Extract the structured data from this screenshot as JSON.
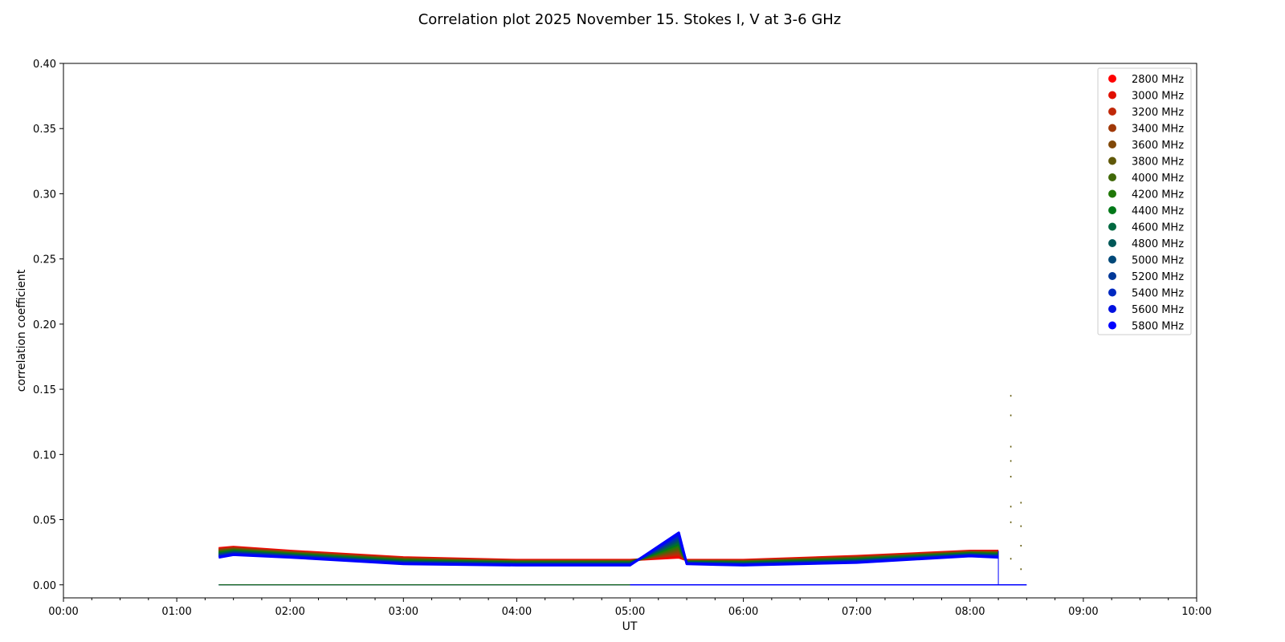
{
  "chart_data": {
    "type": "scatter",
    "title": "Correlation plot 2025 November 15. Stokes I, V at 3-6 GHz",
    "xlabel": "UT",
    "ylabel": "correlation coefficient",
    "xlim_hours": [
      0,
      10
    ],
    "ylim": [
      -0.01,
      0.4
    ],
    "xticks": [
      "00:00",
      "01:00",
      "02:00",
      "03:00",
      "04:00",
      "05:00",
      "06:00",
      "07:00",
      "08:00",
      "09:00",
      "10:00"
    ],
    "yticks": [
      "0.00",
      "0.05",
      "0.10",
      "0.15",
      "0.20",
      "0.25",
      "0.30",
      "0.35",
      "0.40"
    ],
    "legend_position": "top-right",
    "x_hours": [
      1.37,
      1.5,
      2,
      3,
      4,
      5,
      5.43,
      5.5,
      6,
      7,
      8,
      8.25
    ],
    "series": [
      {
        "name": "2800 MHz",
        "color": "#ff0000",
        "values": [
          0.028,
          0.029,
          0.026,
          0.021,
          0.019,
          0.019,
          0.021,
          0.019,
          0.019,
          0.022,
          0.026,
          0.026
        ]
      },
      {
        "name": "3000 MHz",
        "color": "#e01000",
        "values": [
          0.0275,
          0.0286,
          0.0257,
          0.0207,
          0.0187,
          0.0187,
          0.0223,
          0.0188,
          0.0187,
          0.0217,
          0.0257,
          0.0257
        ]
      },
      {
        "name": "3200 MHz",
        "color": "#c02808",
        "values": [
          0.0271,
          0.0282,
          0.0253,
          0.0203,
          0.0185,
          0.0185,
          0.0235,
          0.0186,
          0.0185,
          0.0213,
          0.0255,
          0.0253
        ]
      },
      {
        "name": "3400 MHz",
        "color": "#a03808",
        "values": [
          0.0266,
          0.0278,
          0.025,
          0.02,
          0.0182,
          0.0182,
          0.0248,
          0.0184,
          0.0182,
          0.021,
          0.0252,
          0.025
        ]
      },
      {
        "name": "3600 MHz",
        "color": "#804808",
        "values": [
          0.0261,
          0.0274,
          0.0247,
          0.0197,
          0.0179,
          0.0179,
          0.0261,
          0.0182,
          0.0179,
          0.0207,
          0.0249,
          0.0247
        ]
      },
      {
        "name": "3800 MHz",
        "color": "#605808",
        "values": [
          0.0257,
          0.027,
          0.0243,
          0.0193,
          0.0177,
          0.0177,
          0.0273,
          0.018,
          0.0177,
          0.0203,
          0.0247,
          0.0243
        ]
      },
      {
        "name": "4000 MHz",
        "color": "#406808",
        "values": [
          0.0252,
          0.0266,
          0.024,
          0.019,
          0.0174,
          0.0174,
          0.0286,
          0.0178,
          0.0174,
          0.02,
          0.0244,
          0.024
        ]
      },
      {
        "name": "4200 MHz",
        "color": "#207808",
        "values": [
          0.0247,
          0.0262,
          0.0237,
          0.0187,
          0.0171,
          0.0171,
          0.0299,
          0.0176,
          0.0171,
          0.0197,
          0.0241,
          0.0237
        ]
      },
      {
        "name": "4400 MHz",
        "color": "#007818",
        "values": [
          0.0243,
          0.0258,
          0.0233,
          0.0183,
          0.0169,
          0.0169,
          0.0311,
          0.0174,
          0.0169,
          0.0193,
          0.0239,
          0.0233
        ]
      },
      {
        "name": "4600 MHz",
        "color": "#006840",
        "values": [
          0.0238,
          0.0254,
          0.023,
          0.018,
          0.0166,
          0.0166,
          0.0324,
          0.0172,
          0.0166,
          0.019,
          0.0236,
          0.023
        ]
      },
      {
        "name": "4800 MHz",
        "color": "#005858",
        "values": [
          0.0233,
          0.025,
          0.0227,
          0.0177,
          0.0163,
          0.0163,
          0.0337,
          0.017,
          0.0163,
          0.0187,
          0.0233,
          0.0227
        ]
      },
      {
        "name": "5000 MHz",
        "color": "#004878",
        "values": [
          0.0229,
          0.0246,
          0.0223,
          0.0173,
          0.0161,
          0.0161,
          0.0349,
          0.0168,
          0.0161,
          0.0183,
          0.0231,
          0.0223
        ]
      },
      {
        "name": "5200 MHz",
        "color": "#003898",
        "values": [
          0.0224,
          0.0242,
          0.022,
          0.017,
          0.0158,
          0.0158,
          0.0362,
          0.0166,
          0.0158,
          0.018,
          0.0228,
          0.022
        ]
      },
      {
        "name": "5400 MHz",
        "color": "#0028c0",
        "values": [
          0.0219,
          0.0238,
          0.0217,
          0.0167,
          0.0155,
          0.0155,
          0.0375,
          0.0164,
          0.0155,
          0.0177,
          0.0225,
          0.0217
        ]
      },
      {
        "name": "5600 MHz",
        "color": "#0010e0",
        "values": [
          0.0215,
          0.0234,
          0.0213,
          0.0163,
          0.0153,
          0.0153,
          0.0387,
          0.0162,
          0.0153,
          0.0173,
          0.0223,
          0.0213
        ]
      },
      {
        "name": "5800 MHz",
        "color": "#0000ff",
        "values": [
          0.021,
          0.023,
          0.021,
          0.016,
          0.015,
          0.015,
          0.04,
          0.016,
          0.015,
          0.017,
          0.022,
          0.021
        ]
      }
    ],
    "stokes_v": {
      "x_hours": [
        1.37,
        8.5
      ],
      "values": [
        0.0,
        0.0
      ]
    },
    "outliers": [
      {
        "x": 8.36,
        "y": 0.145
      },
      {
        "x": 8.36,
        "y": 0.13
      },
      {
        "x": 8.36,
        "y": 0.106
      },
      {
        "x": 8.36,
        "y": 0.095
      },
      {
        "x": 8.36,
        "y": 0.083
      },
      {
        "x": 8.36,
        "y": 0.06
      },
      {
        "x": 8.36,
        "y": 0.048
      },
      {
        "x": 8.36,
        "y": 0.02
      },
      {
        "x": 8.45,
        "y": 0.063
      },
      {
        "x": 8.45,
        "y": 0.045
      },
      {
        "x": 8.45,
        "y": 0.03
      },
      {
        "x": 8.45,
        "y": 0.012
      }
    ]
  }
}
